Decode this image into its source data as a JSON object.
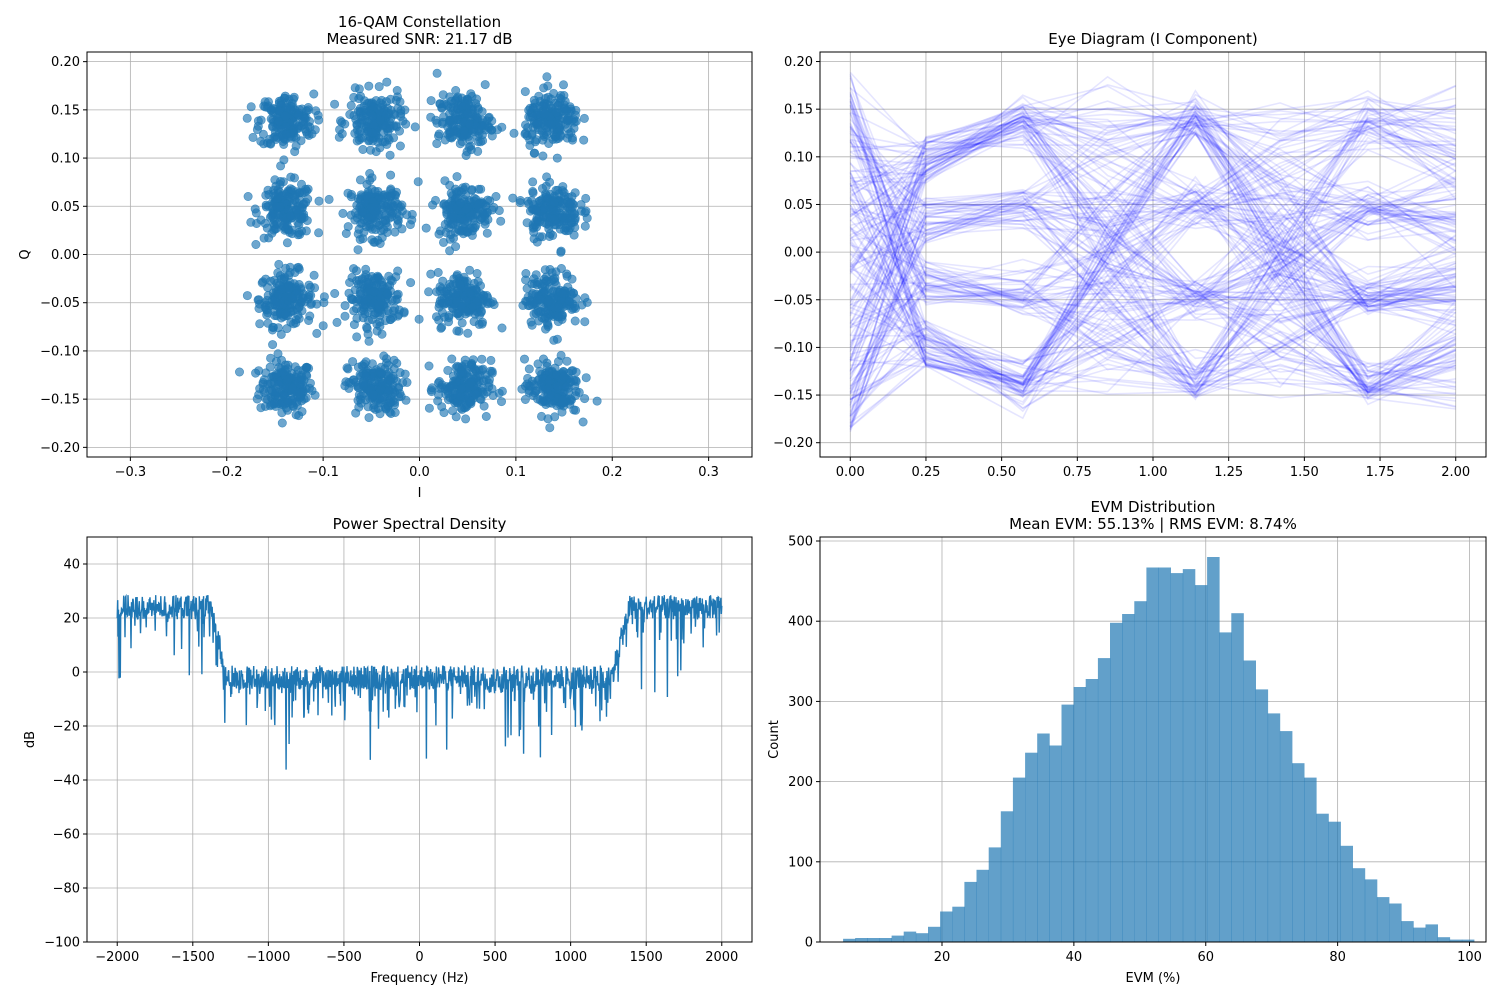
{
  "chart_data": [
    {
      "id": "constellation",
      "type": "scatter",
      "title_lines": [
        "16-QAM Constellation",
        "Measured SNR: 21.17 dB"
      ],
      "xlabel": "I",
      "ylabel": "Q",
      "xlim": [
        -0.345,
        0.345
      ],
      "ylim": [
        -0.21,
        0.21
      ],
      "xticks": [
        -0.3,
        -0.2,
        -0.1,
        0.0,
        0.1,
        0.2,
        0.3
      ],
      "xtick_labels": [
        "−0.3",
        "−0.2",
        "−0.1",
        "0.0",
        "0.1",
        "0.2",
        "0.3"
      ],
      "yticks": [
        -0.2,
        -0.15,
        -0.1,
        -0.05,
        0.0,
        0.05,
        0.1,
        0.15,
        0.2
      ],
      "ytick_labels": [
        "−0.20",
        "−0.15",
        "−0.10",
        "−0.05",
        "0.00",
        "0.05",
        "0.10",
        "0.15",
        "0.20"
      ],
      "grid": true,
      "color": "#1f77b4",
      "cluster_centers": [
        -0.138,
        -0.046,
        0.046,
        0.138
      ],
      "cluster_spread": 0.014,
      "points_per_cluster": 180
    },
    {
      "id": "eye",
      "type": "line",
      "title_lines": [
        "Eye Diagram (I Component)"
      ],
      "xlabel": "",
      "ylabel": "",
      "xlim": [
        -0.1,
        2.1
      ],
      "ylim": [
        -0.215,
        0.21
      ],
      "xticks": [
        0.0,
        0.25,
        0.5,
        0.75,
        1.0,
        1.25,
        1.5,
        1.75,
        2.0
      ],
      "xtick_labels": [
        "0.00",
        "0.25",
        "0.50",
        "0.75",
        "1.00",
        "1.25",
        "1.50",
        "1.75",
        "2.00"
      ],
      "yticks": [
        -0.2,
        -0.15,
        -0.1,
        -0.05,
        0.0,
        0.05,
        0.1,
        0.15,
        0.2
      ],
      "ytick_labels": [
        "−0.20",
        "−0.15",
        "−0.10",
        "−0.05",
        "0.00",
        "0.05",
        "0.10",
        "0.15",
        "0.20"
      ],
      "grid": true,
      "color": "#0000ff",
      "levels": [
        -0.138,
        -0.046,
        0.046,
        0.138
      ],
      "traces": 200
    },
    {
      "id": "psd",
      "type": "line",
      "title_lines": [
        "Power Spectral Density"
      ],
      "xlabel": "Frequency (Hz)",
      "ylabel": "dB",
      "xlim": [
        -2200,
        2200
      ],
      "ylim": [
        -100,
        50
      ],
      "xticks": [
        -2000,
        -1500,
        -1000,
        -500,
        0,
        500,
        1000,
        1500,
        2000
      ],
      "xtick_labels": [
        "−2000",
        "−1500",
        "−1000",
        "−500",
        "0",
        "500",
        "1000",
        "1500",
        "2000"
      ],
      "yticks": [
        -100,
        -80,
        -60,
        -40,
        -20,
        0,
        20,
        40
      ],
      "ytick_labels": [
        "−100",
        "−80",
        "−60",
        "−40",
        "−20",
        "0",
        "20",
        "40"
      ],
      "grid": true,
      "color": "#1f77b4",
      "band_edge_hz": 1330,
      "high_level_db": 24,
      "low_level_db": -2
    },
    {
      "id": "evm",
      "type": "bar",
      "title_lines": [
        "EVM Distribution",
        "Mean EVM: 55.13% | RMS EVM: 8.74%"
      ],
      "xlabel": "EVM (%)",
      "ylabel": "Count",
      "xlim": [
        1.5,
        102.5
      ],
      "ylim": [
        0,
        505
      ],
      "xticks": [
        20,
        40,
        60,
        80,
        100
      ],
      "xtick_labels": [
        "20",
        "40",
        "60",
        "80",
        "100"
      ],
      "yticks": [
        0,
        100,
        200,
        300,
        400,
        500
      ],
      "ytick_labels": [
        "0",
        "100",
        "200",
        "300",
        "400",
        "500"
      ],
      "grid": true,
      "color": "#1f77b4",
      "bin_start": 5.0,
      "bin_width": 1.84,
      "counts": [
        4,
        5,
        5,
        5,
        8,
        13,
        11,
        19,
        38,
        44,
        75,
        90,
        118,
        163,
        205,
        236,
        260,
        245,
        296,
        318,
        328,
        354,
        398,
        409,
        425,
        467,
        467,
        460,
        465,
        445,
        480,
        386,
        410,
        351,
        315,
        285,
        263,
        223,
        205,
        160,
        150,
        120,
        92,
        78,
        56,
        48,
        26,
        18,
        22,
        6,
        3,
        3
      ]
    }
  ]
}
